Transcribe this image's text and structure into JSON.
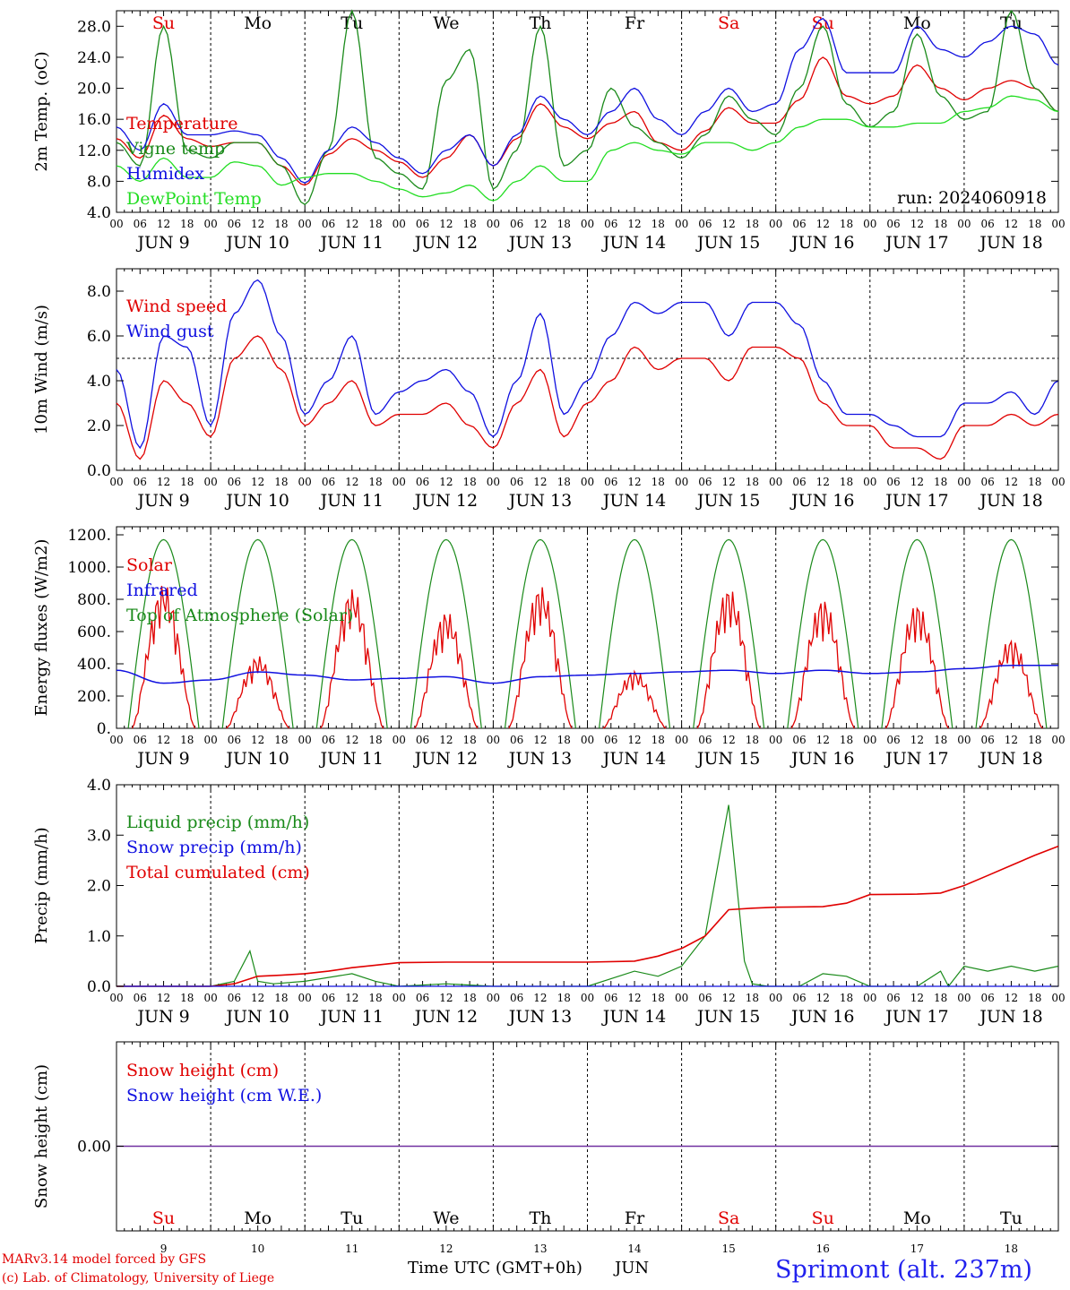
{
  "days": [
    "Su",
    "Mo",
    "Tu",
    "We",
    "Th",
    "Fr",
    "Sa",
    "Su",
    "Mo",
    "Tu"
  ],
  "day_colors": [
    "#e00000",
    "#000000",
    "#000000",
    "#000000",
    "#000000",
    "#000000",
    "#e00000",
    "#e00000",
    "#000000",
    "#000000"
  ],
  "date_labels": [
    "JUN  9",
    "JUN 10",
    "JUN 11",
    "JUN 12",
    "JUN 13",
    "JUN 14",
    "JUN 15",
    "JUN 16",
    "JUN 17",
    "JUN 18"
  ],
  "day_numbers": [
    "9",
    "10",
    "11",
    "12",
    "13",
    "14",
    "15",
    "16",
    "17",
    "18"
  ],
  "hour_ticks": [
    "00",
    "06",
    "12",
    "18"
  ],
  "end_tick": "00",
  "run_label": "run: 2024060918",
  "footer": {
    "model": "MARv3.14 model forced by GFS",
    "copyright": "(c) Lab. of Climatology, University of Liege",
    "time_axis": "Time UTC (GMT+0h)",
    "month": "JUN",
    "location": "Sprimont (alt. 237m)"
  },
  "chart_data": [
    {
      "type": "line",
      "ylabel": "2m Temp. (oC)",
      "ylim": [
        4,
        30
      ],
      "yticks": [
        "4.0",
        "8.0",
        "12.0",
        "16.0",
        "20.0",
        "24.0",
        "28.0"
      ],
      "legend": [
        {
          "name": "Temperature",
          "color": "#e00000"
        },
        {
          "name": "Vigne temp",
          "color": "#1a8a1a"
        },
        {
          "name": "Humidex",
          "color": "#1010e0"
        },
        {
          "name": "DewPoint Temp",
          "color": "#22dd22"
        }
      ],
      "x_hours": [
        0,
        6,
        12,
        18,
        24,
        30,
        36,
        42,
        48,
        54,
        60,
        66,
        72,
        78,
        84,
        90,
        96,
        102,
        108,
        114,
        120,
        126,
        132,
        138,
        144,
        150,
        156,
        162,
        168,
        174,
        180,
        186,
        192,
        198,
        204,
        210,
        216,
        222,
        228,
        234,
        240
      ],
      "series": [
        {
          "name": "Temperature",
          "color": "#e00000",
          "values": [
            13.5,
            11,
            16.5,
            13.5,
            12.5,
            13,
            13,
            10,
            7.5,
            11.5,
            13.5,
            12,
            10.5,
            8.5,
            11,
            14,
            10,
            13.5,
            18,
            15,
            13.5,
            15.5,
            17,
            13,
            12,
            14.5,
            17.5,
            15.5,
            15.5,
            18.5,
            24,
            19,
            18,
            19,
            23,
            20,
            18.5,
            20,
            21,
            20,
            17
          ]
        },
        {
          "name": "Vigne temp",
          "color": "#1a8a1a",
          "values": [
            13,
            10,
            28,
            12,
            11,
            13,
            13,
            10,
            5,
            12,
            30,
            11,
            9,
            7,
            21,
            25,
            7,
            12,
            28,
            10,
            12,
            20,
            15,
            13,
            11,
            14,
            19,
            16,
            14,
            20,
            28,
            18,
            15,
            17,
            27,
            19,
            16,
            17,
            30,
            20,
            17
          ]
        },
        {
          "name": "Humidex",
          "color": "#1010e0",
          "values": [
            15,
            12,
            18,
            14,
            14,
            14.5,
            14,
            11,
            7.8,
            12,
            15,
            13,
            11,
            9,
            12,
            14,
            10,
            14,
            19,
            16,
            14,
            17,
            20,
            16,
            14,
            17,
            20,
            17,
            18,
            25,
            29,
            22,
            22,
            22,
            28,
            25,
            24,
            26,
            28,
            27,
            23
          ]
        },
        {
          "name": "DewPoint Temp",
          "color": "#22dd22",
          "values": [
            10,
            8,
            11,
            8.5,
            8.5,
            10.5,
            10,
            7.5,
            8.5,
            9,
            9,
            8,
            7,
            6,
            6.5,
            7.5,
            5.5,
            8,
            10,
            8,
            8,
            12,
            13,
            12,
            11.5,
            13,
            13,
            12,
            13,
            15,
            16,
            16,
            15,
            15,
            15.5,
            15.5,
            17,
            17.5,
            19,
            18.5,
            17
          ]
        }
      ]
    },
    {
      "type": "line",
      "ylabel": "10m Wind (m/s)",
      "ylim": [
        0,
        9
      ],
      "yticks": [
        "0.0",
        "2.0",
        "4.0",
        "6.0",
        "8.0"
      ],
      "reference_line": 5,
      "legend": [
        {
          "name": "Wind speed",
          "color": "#e00000"
        },
        {
          "name": "Wind gust",
          "color": "#1010e0"
        }
      ],
      "x_hours": [
        0,
        6,
        12,
        18,
        24,
        30,
        36,
        42,
        48,
        54,
        60,
        66,
        72,
        78,
        84,
        90,
        96,
        102,
        108,
        114,
        120,
        126,
        132,
        138,
        144,
        150,
        156,
        162,
        168,
        174,
        180,
        186,
        192,
        198,
        204,
        210,
        216,
        222,
        228,
        234,
        240
      ],
      "series": [
        {
          "name": "Wind speed",
          "color": "#e00000",
          "values": [
            3,
            0.5,
            4,
            3,
            1.5,
            5,
            6,
            4.5,
            2,
            3,
            4,
            2,
            2.5,
            2.5,
            3,
            2,
            1,
            3,
            4.5,
            1.5,
            3,
            4,
            5.5,
            4.5,
            5,
            5,
            4,
            5.5,
            5.5,
            5,
            3,
            2,
            2,
            1,
            1,
            0.5,
            2,
            2,
            2.5,
            2,
            2.5
          ]
        },
        {
          "name": "Wind gust",
          "color": "#1010e0",
          "values": [
            4.5,
            1,
            6,
            5.5,
            2,
            7,
            8.5,
            6,
            2.5,
            4,
            6,
            2.5,
            3.5,
            4,
            4.5,
            3.5,
            1.5,
            4,
            7,
            2.5,
            4,
            6,
            7.5,
            7,
            7.5,
            7.5,
            6,
            7.5,
            7.5,
            6.5,
            4,
            2.5,
            2.5,
            2,
            1.5,
            1.5,
            3,
            3,
            3.5,
            2.5,
            4
          ]
        }
      ]
    },
    {
      "type": "line",
      "ylabel": "Energy fluxes (W/m2)",
      "ylim": [
        0,
        1250
      ],
      "yticks": [
        "0.",
        "200.",
        "400.",
        "600.",
        "800.",
        "1000.",
        "1200."
      ],
      "legend": [
        {
          "name": "Solar",
          "color": "#e00000"
        },
        {
          "name": "Infrared",
          "color": "#1010e0"
        },
        {
          "name": "Top of Atmosphere (Solar)",
          "color": "#1a8a1a"
        }
      ],
      "toa_peak": 1170,
      "solar_peaks": [
        900,
        450,
        870,
        730,
        890,
        360,
        880,
        810,
        780,
        560
      ],
      "x_hours": [
        0,
        12,
        24,
        36,
        48,
        60,
        72,
        84,
        96,
        108,
        120,
        132,
        144,
        156,
        168,
        180,
        192,
        204,
        216,
        228,
        240
      ],
      "series": [
        {
          "name": "Infrared",
          "color": "#1010e0",
          "values": [
            360,
            280,
            300,
            350,
            330,
            300,
            310,
            320,
            280,
            320,
            330,
            340,
            350,
            360,
            340,
            360,
            340,
            350,
            370,
            390,
            390
          ]
        }
      ]
    },
    {
      "type": "line",
      "ylabel": "Precip (mm/h)",
      "ylim": [
        0,
        4
      ],
      "yticks": [
        "0.0",
        "1.0",
        "2.0",
        "3.0",
        "4.0"
      ],
      "legend": [
        {
          "name": "Liquid precip (mm/h)",
          "color": "#1a8a1a"
        },
        {
          "name": "Snow precip (mm/h)",
          "color": "#1010e0"
        },
        {
          "name": "Total cumulated (cm)",
          "color": "#e00000"
        }
      ],
      "series": [
        {
          "name": "Liquid precip (mm/h)",
          "color": "#1a8a1a",
          "x_hours": [
            0,
            24,
            30,
            34,
            36,
            40,
            48,
            60,
            66,
            72,
            84,
            96,
            120,
            132,
            138,
            144,
            150,
            156,
            160,
            162,
            166,
            174,
            180,
            186,
            192,
            198,
            204,
            210,
            212,
            216,
            222,
            228,
            234,
            240
          ],
          "values": [
            0,
            0,
            0.1,
            0.7,
            0.1,
            0.05,
            0.1,
            0.25,
            0.1,
            0,
            0.05,
            0,
            0,
            0.3,
            0.2,
            0.4,
            1.0,
            3.6,
            0.5,
            0.05,
            0,
            0,
            0.25,
            0.2,
            0,
            0,
            0,
            0.3,
            0,
            0.4,
            0.3,
            0.4,
            0.3,
            0.4
          ]
        },
        {
          "name": "Total cumulated (cm)",
          "color": "#e00000",
          "x_hours": [
            0,
            24,
            30,
            36,
            42,
            48,
            54,
            60,
            66,
            72,
            84,
            96,
            108,
            120,
            132,
            138,
            144,
            150,
            156,
            162,
            168,
            180,
            186,
            192,
            204,
            210,
            216,
            222,
            228,
            234,
            240
          ],
          "values": [
            0,
            0,
            0.05,
            0.2,
            0.22,
            0.25,
            0.3,
            0.37,
            0.42,
            0.47,
            0.48,
            0.48,
            0.48,
            0.48,
            0.5,
            0.6,
            0.75,
            1.0,
            1.52,
            1.55,
            1.57,
            1.58,
            1.65,
            1.82,
            1.83,
            1.85,
            2.0,
            2.2,
            2.4,
            2.6,
            2.78
          ]
        },
        {
          "name": "Snow precip (mm/h)",
          "color": "#1010e0",
          "x_hours": [
            0,
            240
          ],
          "values": [
            0,
            0
          ]
        }
      ]
    },
    {
      "type": "line",
      "ylabel": "Snow height (cm)",
      "yticks": [
        "0.00"
      ],
      "legend": [
        {
          "name": "Snow height (cm)",
          "color": "#e00000"
        },
        {
          "name": "Snow height (cm W.E.)",
          "color": "#1010e0"
        }
      ],
      "series": [
        {
          "name": "Snow height (cm)",
          "color": "#e00000",
          "x_hours": [
            0,
            240
          ],
          "values": [
            0,
            0
          ]
        },
        {
          "name": "Snow height (cm W.E.)",
          "color": "#1010e0",
          "x_hours": [
            0,
            240
          ],
          "values": [
            0,
            0
          ]
        }
      ]
    }
  ]
}
